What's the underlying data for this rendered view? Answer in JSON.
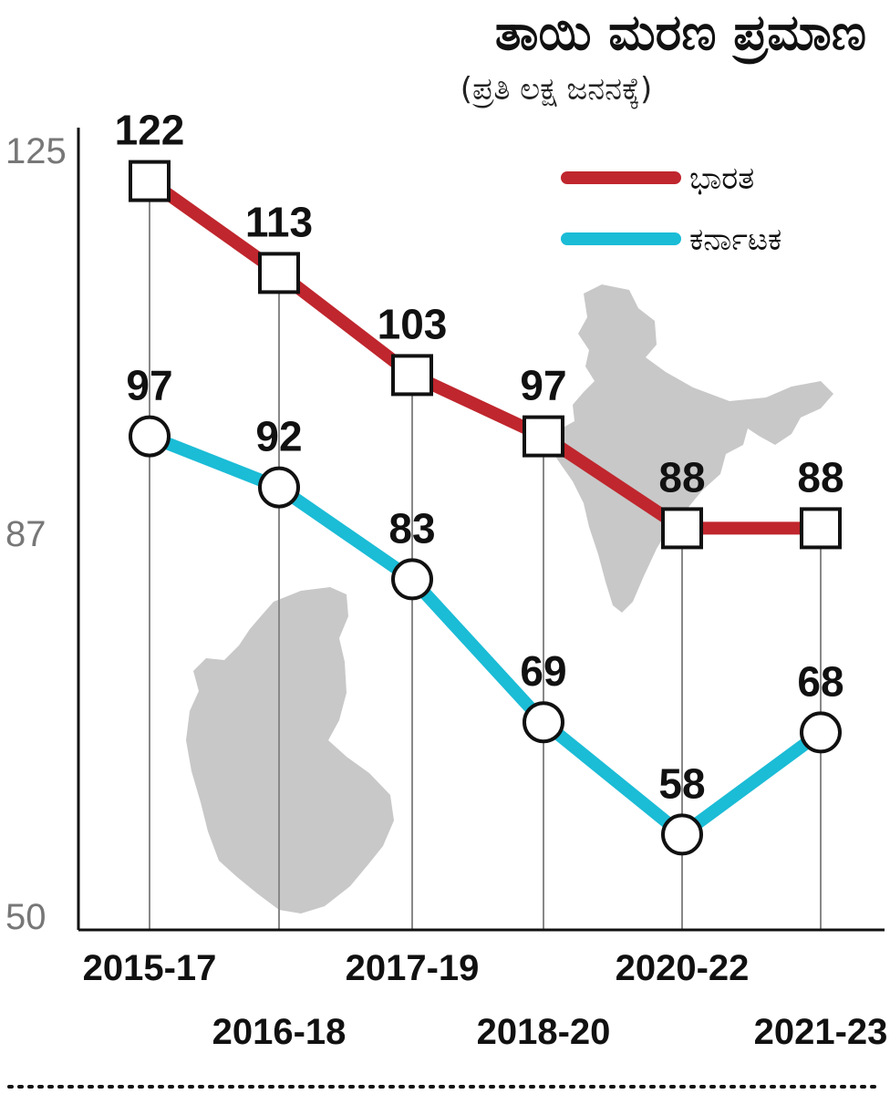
{
  "chart_data": {
    "type": "line",
    "title": "ತಾಯಿ ಮರಣ ಪ್ರಮಾಣ",
    "subtitle": "(ಪ್ರತಿ ಲಕ್ಷ ಜನನಕ್ಕೆ)",
    "categories": [
      "2015-17",
      "2016-18",
      "2017-19",
      "2018-20",
      "2020-22",
      "2021-23"
    ],
    "series": [
      {
        "name": "ಭಾರತ",
        "color": "#c0262d",
        "marker": "square",
        "values": [
          122,
          113,
          103,
          97,
          88,
          88
        ]
      },
      {
        "name": "ಕರ್ನಾಟಕ",
        "color": "#1bbcd6",
        "marker": "circle",
        "values": [
          97,
          92,
          83,
          69,
          58,
          68
        ]
      }
    ],
    "yticks": [
      50,
      87,
      125
    ],
    "ylim": [
      50,
      125
    ],
    "xlabel": "",
    "ylabel": "",
    "legend": "top-right",
    "grid": "vertical"
  }
}
